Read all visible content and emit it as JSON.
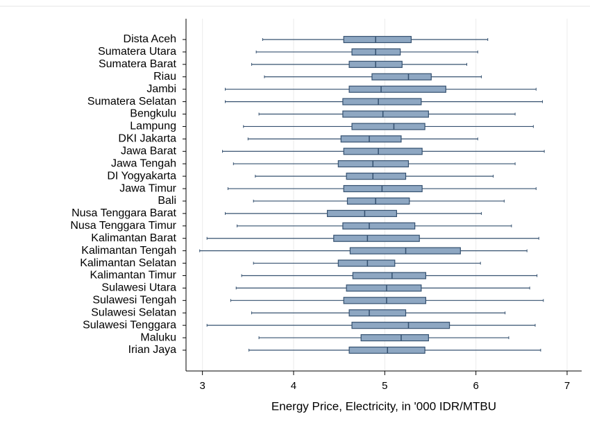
{
  "chart_data": {
    "type": "boxplot",
    "x_label": "Energy Price, Electricity, in '000 IDR/MTBU",
    "categories": [
      "Dista Aceh",
      "Sumatera Utara",
      "Sumatera Barat",
      "Riau",
      "Jambi",
      "Sumatera Selatan",
      "Bengkulu",
      "Lampung",
      "DKI Jakarta",
      "Jawa Barat",
      "Jawa Tengah",
      "DI Yogyakarta",
      "Jawa Timur",
      "Bali",
      "Nusa Tenggara Barat",
      "Nusa Tenggara Timur",
      "Kalimantan Barat",
      "Kalimantan Tengah",
      "Kalimantan Selatan",
      "Kalimantan Timur",
      "Sulawesi Utara",
      "Sulawesi Tengah",
      "Sulawesi Selatan",
      "Sulawesi Tenggara",
      "Maluku",
      "Irian Jaya"
    ],
    "min": [
      3.66,
      3.59,
      3.54,
      3.68,
      3.25,
      3.25,
      3.62,
      3.45,
      3.5,
      3.22,
      3.34,
      3.58,
      3.28,
      3.56,
      3.25,
      3.38,
      3.05,
      2.97,
      3.56,
      3.43,
      3.37,
      3.31,
      3.54,
      3.05,
      3.62,
      3.51
    ],
    "q1": [
      4.55,
      4.64,
      4.61,
      4.86,
      4.61,
      4.54,
      4.54,
      4.64,
      4.52,
      4.55,
      4.49,
      4.58,
      4.55,
      4.59,
      4.37,
      4.54,
      4.44,
      4.62,
      4.49,
      4.65,
      4.58,
      4.55,
      4.61,
      4.64,
      4.74,
      4.61
    ],
    "median": [
      4.9,
      4.9,
      4.9,
      5.26,
      4.96,
      4.93,
      4.98,
      5.1,
      4.83,
      4.93,
      4.87,
      4.87,
      4.97,
      4.9,
      4.78,
      4.83,
      4.81,
      5.23,
      4.81,
      5.08,
      5.02,
      5.02,
      4.83,
      5.26,
      5.18,
      5.03
    ],
    "q3": [
      5.29,
      5.17,
      5.19,
      5.51,
      5.67,
      5.4,
      5.48,
      5.44,
      5.18,
      5.41,
      5.26,
      5.23,
      5.41,
      5.27,
      5.13,
      5.33,
      5.38,
      5.83,
      5.11,
      5.45,
      5.4,
      5.45,
      5.23,
      5.71,
      5.48,
      5.44
    ],
    "max": [
      6.13,
      6.02,
      5.9,
      6.06,
      6.66,
      6.73,
      6.43,
      6.63,
      6.02,
      6.75,
      6.43,
      6.19,
      6.66,
      6.31,
      6.06,
      6.39,
      6.69,
      6.56,
      6.05,
      6.67,
      6.59,
      6.74,
      6.32,
      6.65,
      6.36,
      6.71
    ],
    "color": "#8ea7c2",
    "edge_color": "#34506f",
    "xlim": [
      2.82,
      7.16
    ],
    "xticks": [
      3,
      4,
      5,
      6,
      7
    ],
    "grid": true
  }
}
